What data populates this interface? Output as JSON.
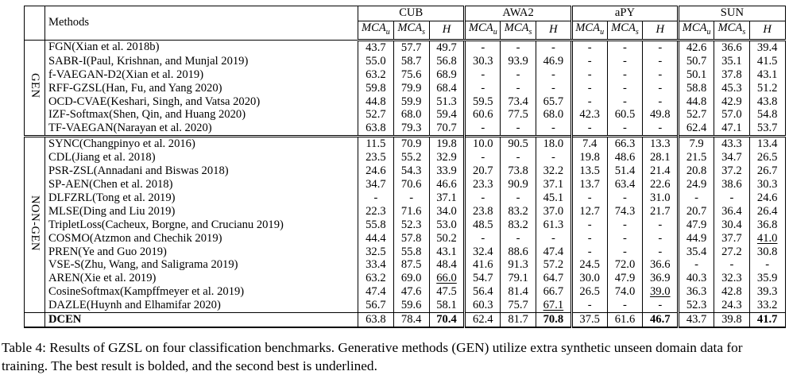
{
  "table": {
    "methods_header": "Methods",
    "col_groups": [
      "CUB",
      "AWA2",
      "aPY",
      "SUN"
    ],
    "sub_headers": [
      {
        "base": "MCA",
        "sub": "u"
      },
      {
        "base": "MCA",
        "sub": "s"
      },
      {
        "base": "H",
        "sub": ""
      }
    ],
    "groups": [
      {
        "label": "GEN",
        "rows": [
          {
            "method": "FGN(Xian et al. 2018b)",
            "cells": [
              "43.7",
              "57.7",
              "49.7",
              "-",
              "-",
              "-",
              "-",
              "-",
              "-",
              "42.6",
              "36.6",
              "39.4"
            ]
          },
          {
            "method": "SABR-I(Paul, Krishnan, and Munjal 2019)",
            "cells": [
              "55.0",
              "58.7",
              "56.8",
              "30.3",
              "93.9",
              "46.9",
              "-",
              "-",
              "-",
              "50.7",
              "35.1",
              "41.5"
            ]
          },
          {
            "method": "f-VAEGAN-D2(Xian et al. 2019)",
            "cells": [
              "63.2",
              "75.6",
              "68.9",
              "-",
              "-",
              "-",
              "-",
              "-",
              "-",
              "50.1",
              "37.8",
              "43.1"
            ]
          },
          {
            "method": "RFF-GZSL(Han, Fu, and Yang 2020)",
            "cells": [
              "59.8",
              "79.9",
              "68.4",
              "-",
              "-",
              "-",
              "-",
              "-",
              "-",
              "58.8",
              "45.3",
              "51.2"
            ]
          },
          {
            "method": "OCD-CVAE(Keshari, Singh, and Vatsa 2020)",
            "cells": [
              "44.8",
              "59.9",
              "51.3",
              "59.5",
              "73.4",
              "65.7",
              "-",
              "-",
              "-",
              "44.8",
              "42.9",
              "43.8"
            ]
          },
          {
            "method": "IZF-Softmax(Shen, Qin, and Huang 2020)",
            "cells": [
              "52.7",
              "68.0",
              "59.4",
              "60.6",
              "77.5",
              "68.0",
              "42.3",
              "60.5",
              "49.8",
              "52.7",
              "57.0",
              "54.8"
            ]
          },
          {
            "method": "TF-VAEGAN(Narayan et al. 2020)",
            "cells": [
              "63.8",
              "79.3",
              "70.7",
              "-",
              "-",
              "-",
              "-",
              "-",
              "-",
              "62.4",
              "47.1",
              "53.7"
            ]
          }
        ]
      },
      {
        "label": "NON-GEN",
        "rows": [
          {
            "method": "SYNC(Changpinyo et al. 2016)",
            "cells": [
              "11.5",
              "70.9",
              "19.8",
              "10.0",
              "90.5",
              "18.0",
              "7.4",
              "66.3",
              "13.3",
              "7.9",
              "43.3",
              "13.4"
            ]
          },
          {
            "method": "CDL(Jiang et al. 2018)",
            "cells": [
              "23.5",
              "55.2",
              "32.9",
              "-",
              "-",
              "-",
              "19.8",
              "48.6",
              "28.1",
              "21.5",
              "34.7",
              "26.5"
            ]
          },
          {
            "method": "PSR-ZSL(Annadani and Biswas 2018)",
            "cells": [
              "24.6",
              "54.3",
              "33.9",
              "20.7",
              "73.8",
              "32.2",
              "13.5",
              "51.4",
              "21.4",
              "20.8",
              "37.2",
              "26.7"
            ]
          },
          {
            "method": "SP-AEN(Chen et al. 2018)",
            "cells": [
              "34.7",
              "70.6",
              "46.6",
              "23.3",
              "90.9",
              "37.1",
              "13.7",
              "63.4",
              "22.6",
              "24.9",
              "38.6",
              "30.3"
            ]
          },
          {
            "method": "DLFZRL(Tong et al. 2019)",
            "cells": [
              "-",
              "-",
              "37.1",
              "-",
              "-",
              "45.1",
              "-",
              "-",
              "31.0",
              "-",
              "-",
              "24.6"
            ]
          },
          {
            "method": "MLSE(Ding and Liu 2019)",
            "cells": [
              "22.3",
              "71.6",
              "34.0",
              "23.8",
              "83.2",
              "37.0",
              "12.7",
              "74.3",
              "21.7",
              "20.7",
              "36.4",
              "26.4"
            ]
          },
          {
            "method": "TripletLoss(Cacheux, Borgne, and Crucianu 2019)",
            "cells": [
              "55.8",
              "52.3",
              "53.0",
              "48.5",
              "83.2",
              "61.3",
              "-",
              "-",
              "-",
              "47.9",
              "30.4",
              "36.8"
            ]
          },
          {
            "method": "COSMO(Atzmon and Chechik 2019)",
            "cells": [
              "44.4",
              "57.8",
              "50.2",
              "-",
              "-",
              "-",
              "-",
              "-",
              "-",
              "44.9",
              "37.7",
              {
                "v": "41.0",
                "u": 1
              }
            ]
          },
          {
            "method": "PREN(Ye and Guo 2019)",
            "cells": [
              "32.5",
              "55.8",
              "43.1",
              "32.4",
              "88.6",
              "47.4",
              "-",
              "-",
              "-",
              "35.4",
              "27.2",
              "30.8"
            ]
          },
          {
            "method": "VSE-S(Zhu, Wang, and Saligrama 2019)",
            "cells": [
              "33.4",
              "87.5",
              "48.4",
              "41.6",
              "91.3",
              "57.2",
              "24.5",
              "72.0",
              "36.6",
              "-",
              "-",
              "-"
            ]
          },
          {
            "method": "AREN(Xie et al. 2019)",
            "cells": [
              "63.2",
              "69.0",
              {
                "v": "66.0",
                "u": 1
              },
              "54.7",
              "79.1",
              "64.7",
              "30.0",
              "47.9",
              "36.9",
              "40.3",
              "32.3",
              "35.9"
            ]
          },
          {
            "method": "CosineSoftmax(Kampffmeyer et al. 2019)",
            "cells": [
              "47.4",
              "47.6",
              "47.5",
              "56.4",
              "81.4",
              "66.7",
              "26.5",
              "74.0",
              {
                "v": "39.0",
                "u": 1
              },
              "36.3",
              "42.8",
              "39.3"
            ]
          },
          {
            "method": "DAZLE(Huynh and Elhamifar 2020)",
            "cells": [
              "56.7",
              "59.6",
              "58.1",
              "60.3",
              "75.7",
              {
                "v": "67.1",
                "u": 1
              },
              "-",
              "-",
              "-",
              "52.3",
              "24.3",
              "33.2"
            ]
          }
        ]
      },
      {
        "label": "",
        "rows": [
          {
            "method": "DCEN",
            "bold_method": true,
            "cells": [
              "63.8",
              "78.4",
              {
                "v": "70.4",
                "b": 1
              },
              "62.4",
              "81.7",
              {
                "v": "70.8",
                "b": 1
              },
              "37.5",
              "61.6",
              {
                "v": "46.7",
                "b": 1
              },
              "43.7",
              "39.8",
              {
                "v": "41.7",
                "b": 1
              }
            ]
          }
        ]
      }
    ]
  },
  "caption": "Table 4: Results of GZSL on four classification benchmarks. Generative methods (GEN) utilize extra synthetic unseen domain data for training. The best result is bolded, and the second best is underlined."
}
